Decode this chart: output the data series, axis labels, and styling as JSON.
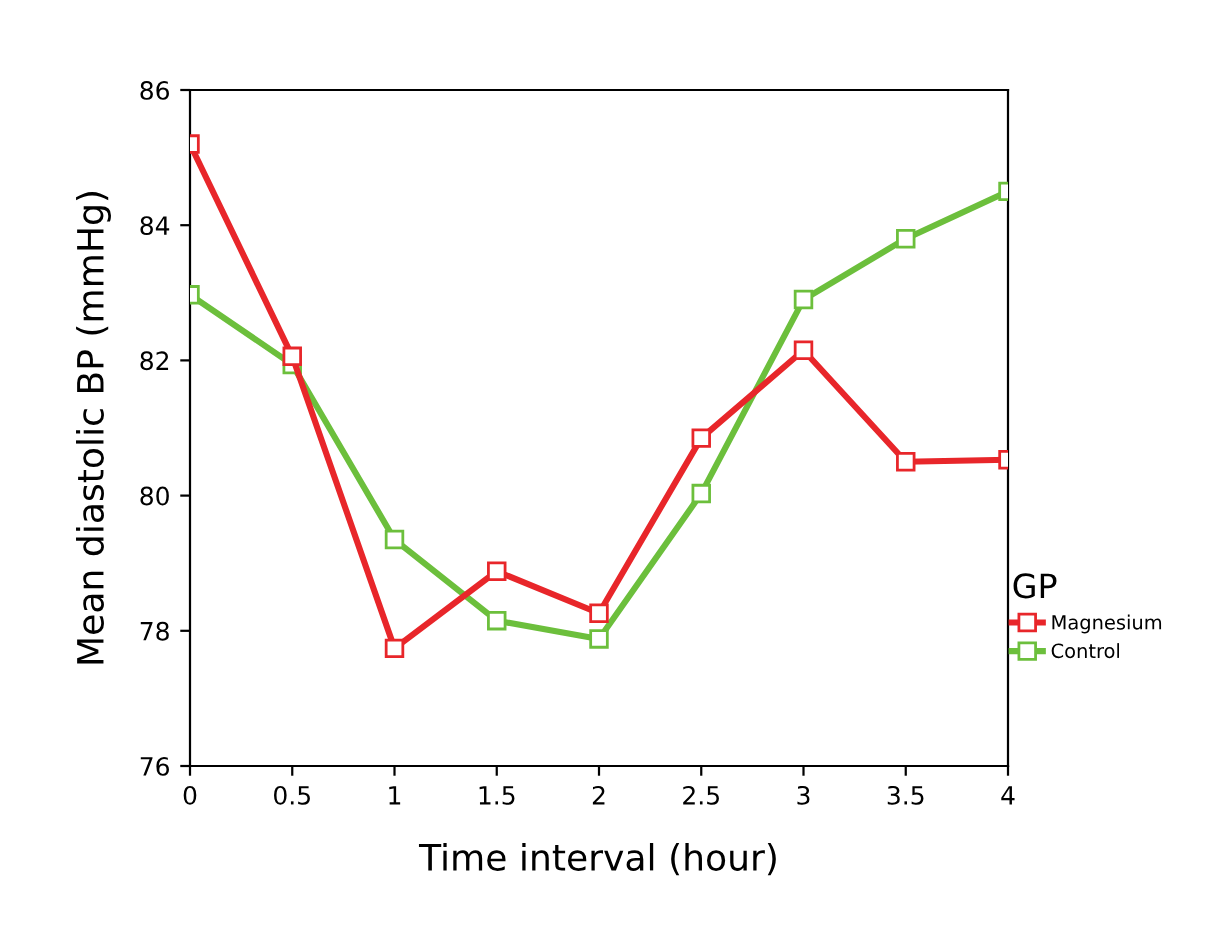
{
  "chart_data": {
    "type": "line",
    "xlabel": "Time interval (hour)",
    "ylabel": "Mean diastolic BP (mmHg)",
    "legend_title": "GP",
    "x": [
      0,
      0.5,
      1,
      1.5,
      2,
      2.5,
      3,
      3.5,
      4
    ],
    "series": [
      {
        "name": "Magnesium",
        "color": "#e8262a",
        "values": [
          85.2,
          82.06,
          77.74,
          78.88,
          78.26,
          80.85,
          82.15,
          80.5,
          80.53
        ]
      },
      {
        "name": "Control",
        "color": "#6cbf3c",
        "values": [
          82.97,
          81.94,
          79.35,
          78.15,
          77.88,
          80.03,
          82.9,
          83.8,
          84.5
        ]
      }
    ],
    "xlim": [
      0,
      4
    ],
    "xticks": [
      0,
      0.5,
      1,
      1.5,
      2,
      2.5,
      3,
      3.5,
      4
    ],
    "ylim": [
      76,
      86
    ],
    "yticks": [
      76,
      78,
      80,
      82,
      84,
      86
    ],
    "marker": "square",
    "line_style": "solid",
    "grid": false,
    "legend": "right"
  }
}
